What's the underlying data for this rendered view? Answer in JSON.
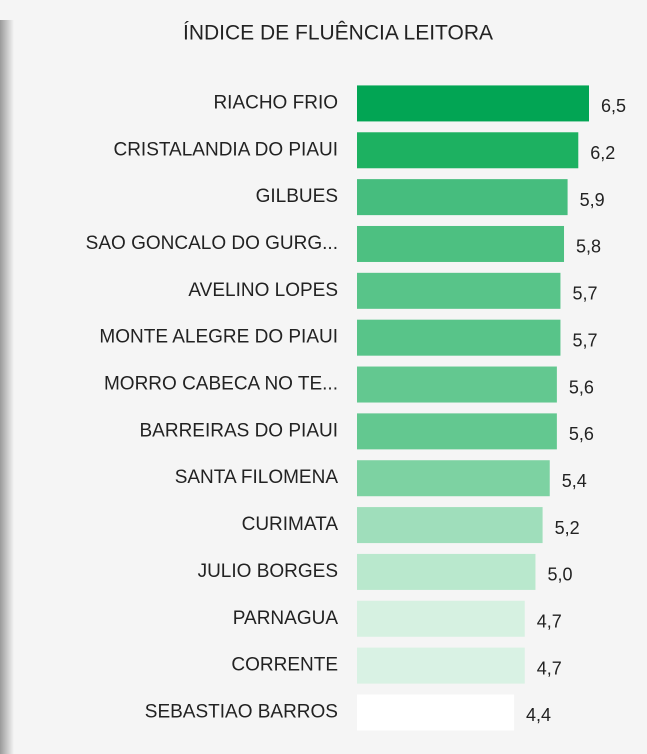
{
  "chart_data": {
    "type": "hbar",
    "title": "ÍNDICE DE FLUÊNCIA LEITORA",
    "categories": [
      "RIACHO FRIO",
      "CRISTALANDIA DO PIAUI",
      "GILBUES",
      "SAO GONCALO DO GURG...",
      "AVELINO LOPES",
      "MONTE ALEGRE DO PIAUI",
      "MORRO CABECA NO TE...",
      "BARREIRAS DO PIAUI",
      "SANTA FILOMENA",
      "CURIMATA",
      "JULIO BORGES",
      "PARNAGUA",
      "CORRENTE",
      "SEBASTIAO BARROS"
    ],
    "values": [
      6.5,
      6.2,
      5.9,
      5.8,
      5.7,
      5.7,
      5.6,
      5.6,
      5.4,
      5.2,
      5.0,
      4.7,
      4.7,
      4.4
    ],
    "value_labels": [
      "6,5",
      "6,2",
      "5,9",
      "5,8",
      "5,7",
      "5,7",
      "5,6",
      "5,6",
      "5,4",
      "5,2",
      "5,0",
      "4,7",
      "4,7",
      "4,4"
    ],
    "colors": [
      "#02a554",
      "#1db161",
      "#46bd7e",
      "#4dc081",
      "#58c489",
      "#58c489",
      "#63c890",
      "#63c890",
      "#7dd2a2",
      "#9fdebb",
      "#b9e8cd",
      "#d6f1e1",
      "#d9f2e4",
      "#ffffff"
    ]
  }
}
